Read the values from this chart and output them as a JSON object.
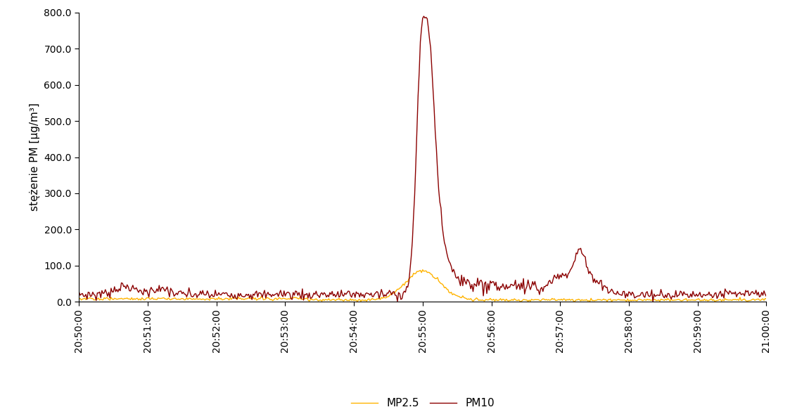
{
  "ylabel": "stężenie PM [µg/m³]",
  "ylim": [
    0.0,
    800.0
  ],
  "yticks": [
    0.0,
    100.0,
    200.0,
    300.0,
    400.0,
    500.0,
    600.0,
    700.0,
    800.0
  ],
  "pm25_color": "#FFB300",
  "pm10_color": "#8B0000",
  "pm25_label": "MP2.5",
  "pm10_label": "PM10",
  "linewidth": 1.0,
  "background_color": "#ffffff",
  "x_tick_labels": [
    "20:50:00",
    "20:51:00",
    "20:52:00",
    "20:53:00",
    "20:54:00",
    "20:55:00",
    "20:56:00",
    "20:57:00",
    "20:58:00",
    "20:59:00",
    "21:00:00"
  ]
}
